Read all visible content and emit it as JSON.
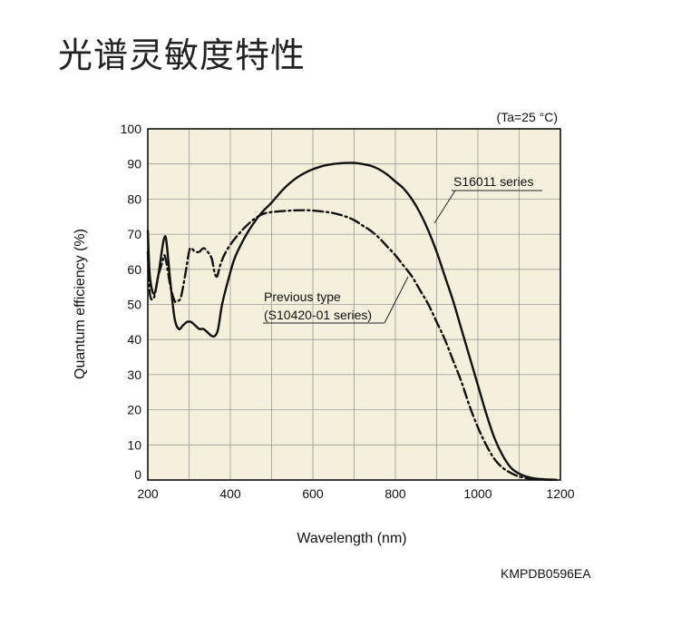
{
  "page_title": "光谱灵敏度特性",
  "doc_code": "KMPDB0596EA",
  "chart_data": {
    "type": "line",
    "title": "",
    "condition": "(Ta=25 °C)",
    "xlabel": "Wavelength (nm)",
    "ylabel": "Quantum efficiency (%)",
    "xlim": [
      200,
      1200
    ],
    "ylim": [
      0,
      100
    ],
    "xticks": [
      200,
      400,
      600,
      800,
      1000,
      1200
    ],
    "yticks": [
      0,
      10,
      20,
      30,
      40,
      50,
      60,
      70,
      80,
      90,
      100
    ],
    "x_minor_step": 100,
    "grid": true,
    "background": "#f4f0dc",
    "series": [
      {
        "name": "S16011 series",
        "line_style": "solid",
        "x": [
          200,
          205,
          215,
          225,
          235,
          240,
          245,
          255,
          265,
          275,
          285,
          295,
          305,
          315,
          325,
          335,
          345,
          355,
          362,
          368,
          372,
          380,
          395,
          410,
          430,
          450,
          475,
          500,
          530,
          560,
          590,
          620,
          650,
          680,
          700,
          720,
          740,
          760,
          780,
          800,
          820,
          840,
          860,
          880,
          900,
          920,
          940,
          960,
          980,
          1000,
          1020,
          1040,
          1060,
          1080,
          1100,
          1120,
          1140,
          1160,
          1180,
          1190
        ],
        "y": [
          71,
          58,
          53,
          58,
          66,
          69,
          68,
          56,
          46,
          43,
          44,
          45,
          45,
          44,
          43,
          43,
          42,
          41,
          41,
          42,
          44,
          50,
          57,
          63,
          68,
          72,
          76,
          79,
          83,
          86,
          88,
          89.3,
          90,
          90.3,
          90.3,
          90,
          89.5,
          88.5,
          87,
          85,
          83,
          80,
          76,
          71,
          65,
          58,
          51,
          43,
          35,
          27,
          19,
          12,
          7,
          3.5,
          1.8,
          0.9,
          0.4,
          0.2,
          0.1,
          0.05
        ]
      },
      {
        "name": "Previous type\n(S10420-01 series)",
        "line_style": "dash-dot",
        "x": [
          200,
          205,
          215,
          225,
          235,
          240,
          245,
          255,
          265,
          272,
          280,
          290,
          300,
          305,
          315,
          325,
          335,
          345,
          355,
          362,
          368,
          375,
          385,
          400,
          420,
          440,
          460,
          480,
          500,
          530,
          560,
          590,
          620,
          650,
          680,
          700,
          720,
          740,
          760,
          780,
          800,
          820,
          840,
          860,
          880,
          900,
          920,
          940,
          960,
          980,
          1000,
          1020,
          1040,
          1060,
          1080,
          1100,
          1120,
          1140,
          1160,
          1180
        ],
        "y": [
          65,
          53,
          52,
          58,
          62,
          64,
          62,
          55,
          51,
          51,
          52,
          58,
          65,
          66,
          65,
          65,
          66,
          65,
          63,
          59,
          58,
          61,
          64,
          67,
          70,
          72.5,
          74.5,
          75.8,
          76.3,
          76.6,
          76.8,
          76.8,
          76.5,
          76,
          75,
          74,
          72.5,
          71,
          69,
          66.5,
          64,
          61,
          58,
          54,
          50,
          45,
          40,
          34,
          28,
          21,
          15,
          10,
          6,
          3.5,
          2,
          1,
          0.5,
          0.2,
          0.08,
          0.03
        ]
      }
    ]
  }
}
